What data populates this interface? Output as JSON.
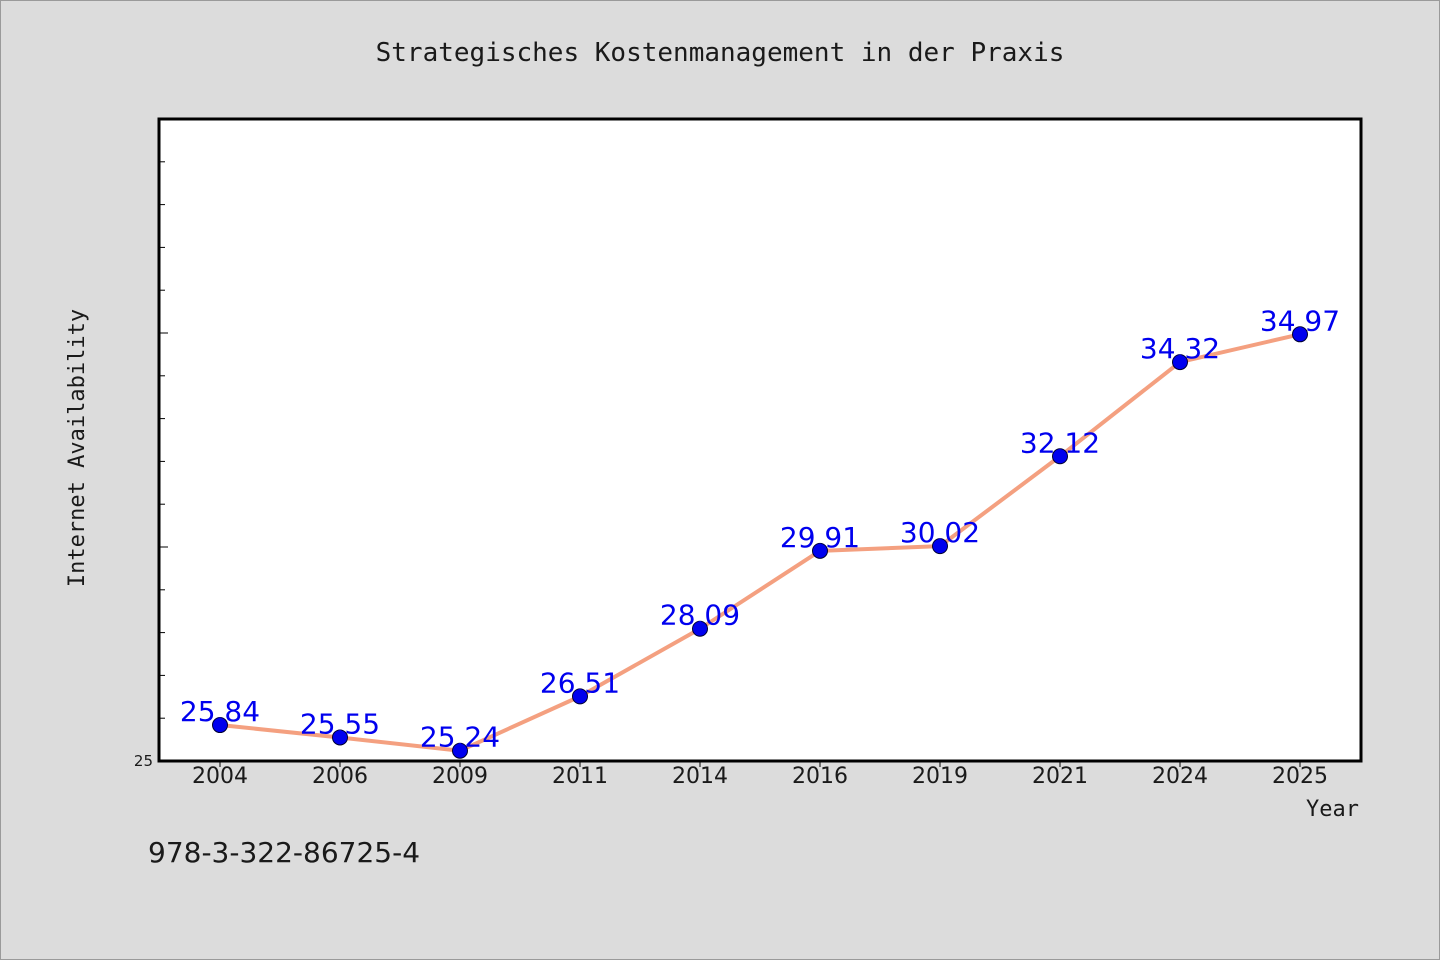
{
  "chart_data": {
    "type": "line",
    "title": "Strategisches Kostenmanagement in der Praxis",
    "xlabel": "Year",
    "ylabel": "Internet Availability",
    "categories": [
      "2004",
      "2006",
      "2009",
      "2011",
      "2014",
      "2016",
      "2019",
      "2021",
      "2024",
      "2025"
    ],
    "values": [
      25.84,
      25.55,
      25.24,
      26.51,
      28.09,
      29.91,
      30.02,
      32.12,
      34.32,
      34.97
    ],
    "value_labels": [
      "25.84",
      "25.55",
      "25.24",
      "26.51",
      "28.09",
      "29.91",
      "30.02",
      "32.12",
      "34.32",
      "34.97"
    ],
    "ylim": [
      25,
      40
    ],
    "y_tick_labels": [
      "25"
    ],
    "line_color": "#f4a080",
    "marker_color": "#0000ee",
    "label_color": "#0000ee",
    "background_color": "#dcdcdc",
    "plot_background": "#ffffff",
    "grid": false
  },
  "footer": {
    "isbn": "978-3-322-86725-4"
  }
}
